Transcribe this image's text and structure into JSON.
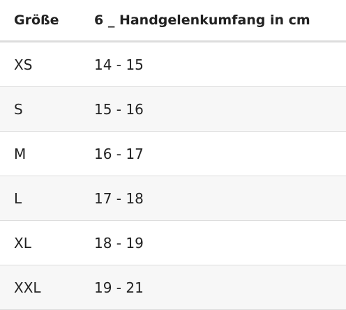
{
  "table": {
    "header": [
      "Größe",
      "6 _ Handgelenkumfang in cm"
    ],
    "rows": [
      [
        "XS",
        "14 - 15"
      ],
      [
        "S",
        "15 - 16"
      ],
      [
        "M",
        "16 - 17"
      ],
      [
        "L",
        "17 - 18"
      ],
      [
        "XL",
        "18 - 19"
      ],
      [
        "XXL",
        "19 - 21"
      ]
    ]
  }
}
